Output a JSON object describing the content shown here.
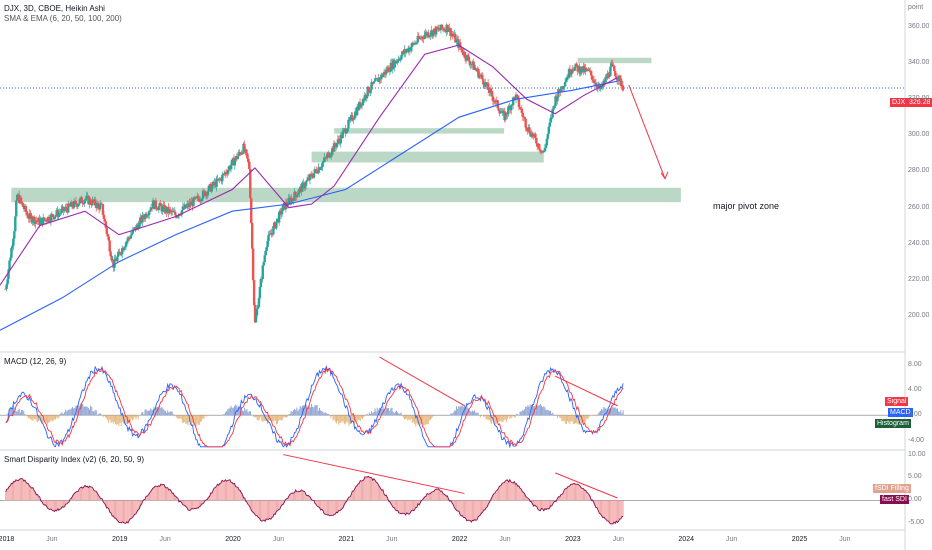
{
  "chart_data": [
    {
      "type": "candlestick",
      "title": "DJX, 3D, CBOE, Heikin Ashi",
      "subtitle": "SMA & EMA (6, 20, 50, 100, 200)",
      "y_unit_label": "point",
      "last_price_label": "DJX",
      "last_price": "326.28",
      "ylim": [
        180,
        375
      ],
      "y_ticks": [
        "360.00",
        "340.00",
        "320.00",
        "300.00",
        "280.00",
        "260.00",
        "240.00",
        "220.00",
        "200.00"
      ],
      "close_path": [
        [
          2018.0,
          215
        ],
        [
          2018.08,
          250
        ],
        [
          2018.1,
          267
        ],
        [
          2018.2,
          255
        ],
        [
          2018.3,
          252
        ],
        [
          2018.5,
          258
        ],
        [
          2018.7,
          265
        ],
        [
          2018.85,
          260
        ],
        [
          2018.95,
          228
        ],
        [
          2019.05,
          240
        ],
        [
          2019.3,
          262
        ],
        [
          2019.5,
          256
        ],
        [
          2019.7,
          265
        ],
        [
          2019.9,
          276
        ],
        [
          2020.1,
          293
        ],
        [
          2020.15,
          283
        ],
        [
          2020.2,
          195
        ],
        [
          2020.3,
          240
        ],
        [
          2020.45,
          260
        ],
        [
          2020.6,
          270
        ],
        [
          2020.8,
          285
        ],
        [
          2020.95,
          298
        ],
        [
          2021.2,
          325
        ],
        [
          2021.5,
          345
        ],
        [
          2021.7,
          356
        ],
        [
          2021.9,
          360
        ],
        [
          2022.05,
          345
        ],
        [
          2022.2,
          332
        ],
        [
          2022.4,
          310
        ],
        [
          2022.5,
          322
        ],
        [
          2022.6,
          305
        ],
        [
          2022.75,
          290
        ],
        [
          2022.85,
          320
        ],
        [
          2023.0,
          338
        ],
        [
          2023.15,
          335
        ],
        [
          2023.25,
          325
        ],
        [
          2023.35,
          338
        ],
        [
          2023.45,
          327
        ]
      ],
      "ma_series": [
        {
          "color": "#2962ff",
          "points": [
            [
              2017.95,
              192
            ],
            [
              2018.5,
              210
            ],
            [
              2019.0,
              230
            ],
            [
              2019.5,
              245
            ],
            [
              2020.0,
              258
            ],
            [
              2020.5,
              262
            ],
            [
              2021.0,
              270
            ],
            [
              2021.5,
              290
            ],
            [
              2022.0,
              310
            ],
            [
              2022.5,
              320
            ],
            [
              2023.0,
              325
            ],
            [
              2023.4,
              330
            ]
          ]
        },
        {
          "color": "#9c27b0",
          "points": [
            [
              2017.95,
              217
            ],
            [
              2018.3,
              250
            ],
            [
              2018.7,
              258
            ],
            [
              2019.0,
              245
            ],
            [
              2019.5,
              255
            ],
            [
              2020.0,
              270
            ],
            [
              2020.2,
              282
            ],
            [
              2020.5,
              260
            ],
            [
              2020.7,
              262
            ],
            [
              2020.9,
              272
            ],
            [
              2021.3,
              310
            ],
            [
              2021.7,
              345
            ],
            [
              2022.0,
              350
            ],
            [
              2022.3,
              338
            ],
            [
              2022.6,
              320
            ],
            [
              2022.85,
              312
            ],
            [
              2023.1,
              322
            ],
            [
              2023.4,
              332
            ]
          ]
        }
      ],
      "zones": [
        {
          "from": 2018.05,
          "to": 2023.96,
          "low": 263,
          "high": 271,
          "label": "major pivot zone"
        },
        {
          "from": 2020.7,
          "to": 2022.75,
          "low": 285,
          "high": 291
        },
        {
          "from": 2020.9,
          "to": 2022.4,
          "low": 301,
          "high": 304
        },
        {
          "from": 2023.05,
          "to": 2023.7,
          "low": 340,
          "high": 343
        }
      ],
      "projection": [
        [
          2023.5,
          328
        ],
        [
          2023.82,
          276
        ]
      ]
    },
    {
      "type": "line",
      "title": "MACD (12, 26, 9)",
      "ylim": [
        -5.5,
        10
      ],
      "y_ticks": [
        "8.00",
        "4.00",
        "0.00",
        "-4.00"
      ],
      "legend": [
        {
          "name": "Signal",
          "color": "#f23645"
        },
        {
          "name": "MACD",
          "color": "#2962ff"
        },
        {
          "name": "Histogram",
          "color": "#22ab94"
        }
      ],
      "divergences": [
        [
          [
            2021.3,
            9.2
          ],
          [
            2022.05,
            1.5
          ]
        ],
        [
          [
            2022.85,
            6.2
          ],
          [
            2023.4,
            1.5
          ]
        ]
      ]
    },
    {
      "type": "line",
      "title": "Smart Disparity Index (v2) (6, 20, 50, 9)",
      "ylim": [
        -6.5,
        11
      ],
      "y_ticks": [
        "10.00",
        "5.00",
        "0.00",
        "-5.00"
      ],
      "legend": [
        {
          "name": "fSDI Filling",
          "color": "#ef9a9a"
        },
        {
          "name": "fast SDI",
          "color": "#880e4f"
        }
      ],
      "divergences": [
        [
          [
            2020.45,
            10
          ],
          [
            2022.05,
            1.5
          ]
        ],
        [
          [
            2022.85,
            6
          ],
          [
            2023.4,
            0.5
          ]
        ]
      ]
    }
  ],
  "x_axis": {
    "labels": [
      {
        "text": "2018",
        "t": 2018.0,
        "year": true
      },
      {
        "text": "Jun",
        "t": 2018.42
      },
      {
        "text": "2019",
        "t": 2019.0,
        "year": true
      },
      {
        "text": "Jun",
        "t": 2019.42
      },
      {
        "text": "2020",
        "t": 2020.0,
        "year": true
      },
      {
        "text": "Jun",
        "t": 2020.42
      },
      {
        "text": "2021",
        "t": 2021.0,
        "year": true
      },
      {
        "text": "Jun",
        "t": 2021.42
      },
      {
        "text": "2022",
        "t": 2022.0,
        "year": true
      },
      {
        "text": "Jun",
        "t": 2022.42
      },
      {
        "text": "2023",
        "t": 2023.0,
        "year": true
      },
      {
        "text": "Jun",
        "t": 2023.42
      },
      {
        "text": "2024",
        "t": 2024.0,
        "year": true
      },
      {
        "text": "Jun",
        "t": 2024.42
      },
      {
        "text": "2025",
        "t": 2025.0,
        "year": true
      },
      {
        "text": "Jun",
        "t": 2025.42
      }
    ]
  }
}
